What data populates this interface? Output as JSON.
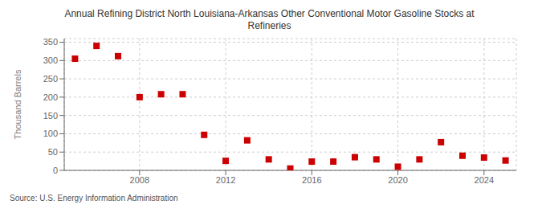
{
  "chart_data": {
    "type": "scatter",
    "title": "Annual Refining District North Louisiana-Arkansas Other Conventional Motor Gasoline Stocks at\nRefineries",
    "ylabel": "Thousand Barrels",
    "annotation": "Source: U.S. Energy Information Administration",
    "x": [
      2005,
      2006,
      2007,
      2008,
      2009,
      2010,
      2011,
      2012,
      2013,
      2014,
      2015,
      2016,
      2017,
      2018,
      2019,
      2020,
      2021,
      2022,
      2023,
      2024,
      2025
    ],
    "values": [
      305,
      340,
      312,
      200,
      208,
      208,
      97,
      26,
      82,
      30,
      5,
      24,
      24,
      36,
      30,
      10,
      30,
      77,
      40,
      35,
      27
    ],
    "color": "#cc0000",
    "marker": "square",
    "xlim": [
      2004.5,
      2025.5
    ],
    "xticks": [
      2008,
      2012,
      2016,
      2020,
      2024
    ],
    "ylim": [
      0,
      360
    ],
    "yticks": [
      0,
      50,
      100,
      150,
      200,
      250,
      300,
      350
    ],
    "grid": true
  }
}
